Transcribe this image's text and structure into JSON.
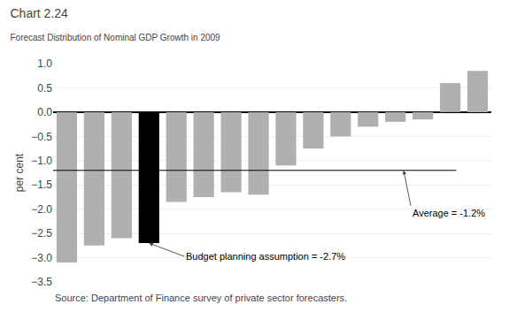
{
  "chart_data": {
    "type": "bar",
    "title": "Chart 2.24",
    "subtitle": "Forecast Distribution of Nominal GDP Growth in 2009",
    "ylabel": "per cent",
    "source": "Source: Department of Finance survey of private sector forecasters.",
    "categories": [
      null,
      null,
      null,
      null,
      null,
      null,
      null,
      null,
      null,
      null,
      null,
      null,
      null,
      null,
      null,
      null
    ],
    "values": [
      -3.1,
      -2.75,
      -2.6,
      -2.7,
      -1.85,
      -1.75,
      -1.65,
      -1.7,
      -1.1,
      -0.75,
      -0.5,
      -0.3,
      -0.2,
      -0.15,
      0.6,
      0.85
    ],
    "colors": [
      "#b0b0b0",
      "#b0b0b0",
      "#b0b0b0",
      "#000000",
      "#b0b0b0",
      "#b0b0b0",
      "#b0b0b0",
      "#b0b0b0",
      "#b0b0b0",
      "#b0b0b0",
      "#b0b0b0",
      "#b0b0b0",
      "#b0b0b0",
      "#b0b0b0",
      "#b0b0b0",
      "#b0b0b0"
    ],
    "ylim": [
      -3.5,
      1.0
    ],
    "yticks": [
      {
        "value": -3.5,
        "label": "−3.5"
      },
      {
        "value": -3.0,
        "label": "−3.0"
      },
      {
        "value": -2.5,
        "label": "−2.5"
      },
      {
        "value": -2.0,
        "label": "−2.0"
      },
      {
        "value": -1.5,
        "label": "−1.5"
      },
      {
        "value": -1.0,
        "label": "−1.0"
      },
      {
        "value": -0.5,
        "label": "−0.5"
      },
      {
        "value": 0.0,
        "label": "0.0"
      },
      {
        "value": 0.5,
        "label": "0.5"
      },
      {
        "value": 1.0,
        "label": "1.0"
      }
    ],
    "grid": true,
    "tick_labels": "y",
    "annotations": [
      {
        "type": "hline",
        "text": "Average = -1.2%",
        "y": -1.2
      },
      {
        "type": "arrow",
        "text": "Budget planning assumption = -2.7%",
        "x": 3,
        "y": -2.7
      }
    ]
  }
}
